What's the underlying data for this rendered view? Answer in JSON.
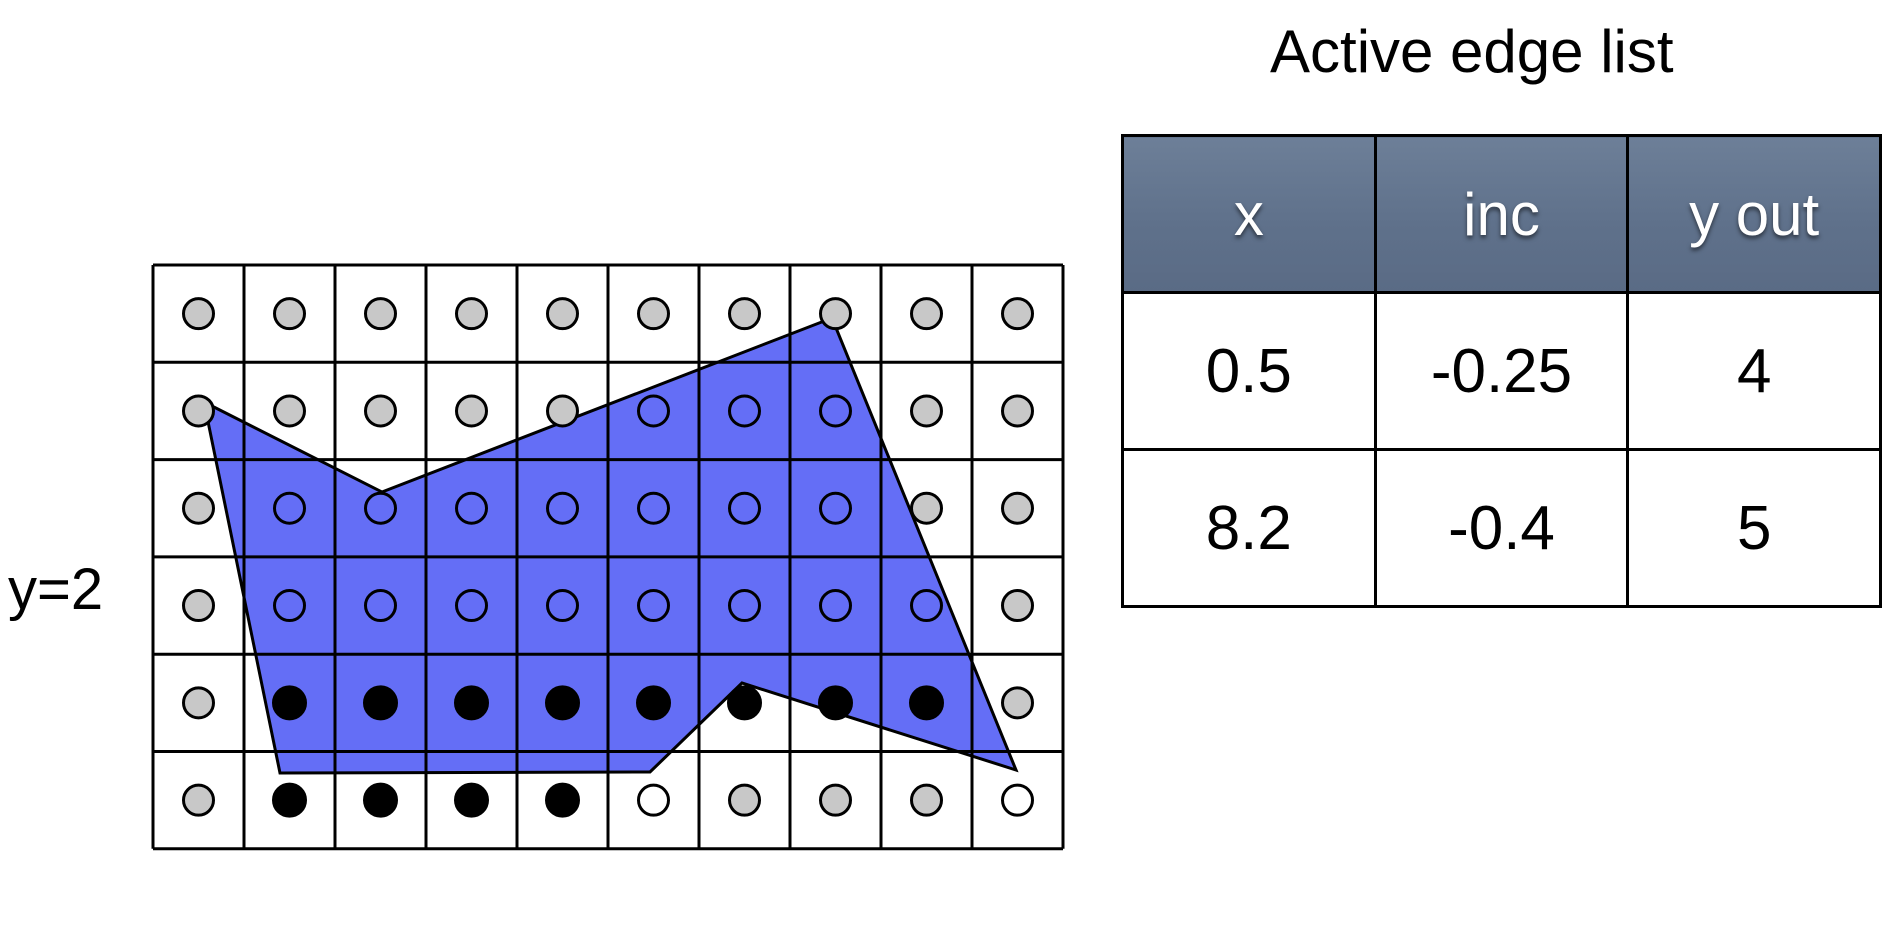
{
  "scanline_label": "y=2",
  "active_edge_list": {
    "title": "Active edge list",
    "columns": [
      "x",
      "inc",
      "y out"
    ],
    "rows": [
      [
        "0.5",
        "-0.25",
        "4"
      ],
      [
        "8.2",
        "-0.4",
        "5"
      ]
    ]
  },
  "grid": {
    "columns": 10,
    "rows": 6,
    "cell_states": [
      [
        "outside",
        "outside",
        "outside",
        "outside",
        "outside",
        "outside",
        "outside",
        "outside",
        "outside",
        "outside"
      ],
      [
        "outside",
        "outside",
        "outside",
        "outside",
        "outside",
        "inside",
        "inside",
        "inside",
        "outside",
        "outside"
      ],
      [
        "outside",
        "inside",
        "inside",
        "inside",
        "inside",
        "inside",
        "inside",
        "inside",
        "outside",
        "outside"
      ],
      [
        "outside",
        "inside",
        "inside",
        "inside",
        "inside",
        "inside",
        "inside",
        "inside",
        "inside",
        "outside"
      ],
      [
        "outside",
        "filled",
        "filled",
        "filled",
        "filled",
        "filled",
        "filled",
        "filled",
        "filled",
        "outside"
      ],
      [
        "outside",
        "filled",
        "filled",
        "filled",
        "filled",
        "inside",
        "outside",
        "outside",
        "outside",
        "inside"
      ]
    ]
  },
  "colors": {
    "polygon_fill": "#646ef6",
    "polygon_stroke": "#000000",
    "outside_sample": "#c8c8c8",
    "filled_sample": "#000000",
    "grid_line": "#000000",
    "header_fill": "#63758f"
  }
}
